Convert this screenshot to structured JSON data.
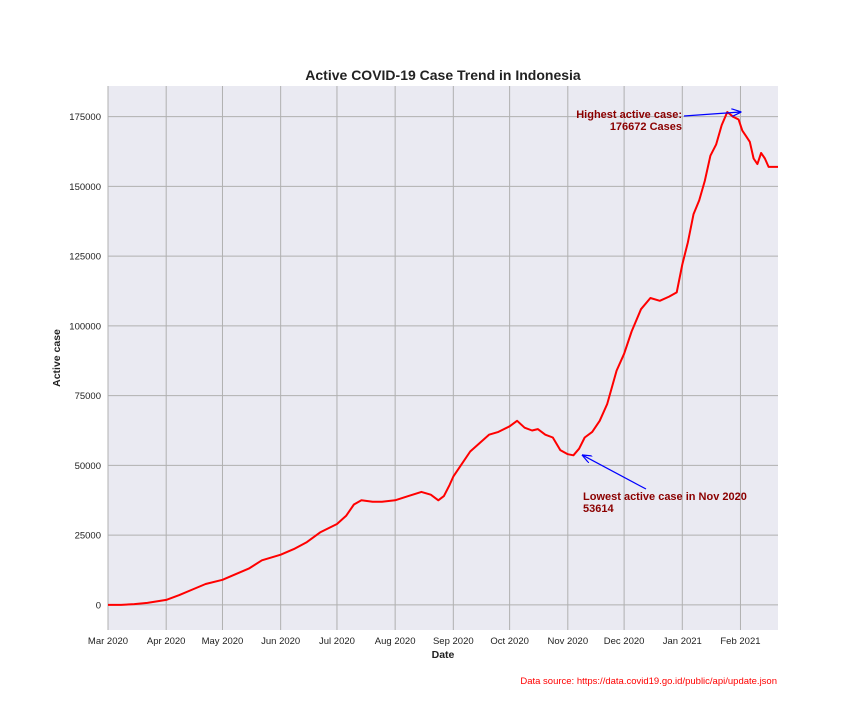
{
  "chart_data": {
    "type": "line",
    "title": "Active COVID-19 Case Trend in Indonesia",
    "xlabel": "Date",
    "ylabel": "Active case",
    "xlim": [
      "2020-03-01",
      "2021-02-21"
    ],
    "ylim": [
      -9000,
      186000
    ],
    "grid": true,
    "x_ticks": [
      "2020-03-01",
      "2020-04-01",
      "2020-05-01",
      "2020-06-01",
      "2020-07-01",
      "2020-08-01",
      "2020-09-01",
      "2020-10-01",
      "2020-11-01",
      "2020-12-01",
      "2021-01-01",
      "2021-02-01"
    ],
    "x_tick_labels": [
      "Mar 2020",
      "Apr 2020",
      "May 2020",
      "Jun 2020",
      "Jul 2020",
      "Aug 2020",
      "Sep 2020",
      "Oct 2020",
      "Nov 2020",
      "Dec 2020",
      "Jan 2021",
      "Feb 2021"
    ],
    "y_ticks": [
      0,
      25000,
      50000,
      75000,
      100000,
      125000,
      150000,
      175000
    ],
    "y_tick_labels": [
      "0",
      "25000",
      "50000",
      "75000",
      "100000",
      "125000",
      "150000",
      "175000"
    ],
    "colors": {
      "line": "#ff0000",
      "plot_bg": "#eaeaf2",
      "grid": "#b0b0b0",
      "arrow": "#0000ff",
      "annotation": "#8b0000",
      "source": "#ff0000"
    },
    "series": [
      {
        "x": [
          "2020-03-01",
          "2020-03-08",
          "2020-03-15",
          "2020-03-22",
          "2020-04-01",
          "2020-04-08",
          "2020-04-15",
          "2020-04-22",
          "2020-05-01",
          "2020-05-08",
          "2020-05-15",
          "2020-05-22",
          "2020-06-01",
          "2020-06-08",
          "2020-06-15",
          "2020-06-22",
          "2020-07-01",
          "2020-07-06",
          "2020-07-10",
          "2020-07-14",
          "2020-07-20",
          "2020-07-25",
          "2020-08-01",
          "2020-08-08",
          "2020-08-15",
          "2020-08-20",
          "2020-08-24",
          "2020-08-27",
          "2020-08-30",
          "2020-09-01",
          "2020-09-05",
          "2020-09-10",
          "2020-09-15",
          "2020-09-20",
          "2020-09-25",
          "2020-10-01",
          "2020-10-05",
          "2020-10-09",
          "2020-10-13",
          "2020-10-16",
          "2020-10-20",
          "2020-10-24",
          "2020-10-28",
          "2020-11-01",
          "2020-11-04",
          "2020-11-07",
          "2020-11-10",
          "2020-11-14",
          "2020-11-18",
          "2020-11-22",
          "2020-11-27",
          "2020-12-01",
          "2020-12-05",
          "2020-12-10",
          "2020-12-15",
          "2020-12-20",
          "2020-12-25",
          "2020-12-29",
          "2021-01-01",
          "2021-01-04",
          "2021-01-07",
          "2021-01-10",
          "2021-01-13",
          "2021-01-16",
          "2021-01-19",
          "2021-01-22",
          "2021-01-25",
          "2021-01-28",
          "2021-01-31",
          "2021-02-02",
          "2021-02-04",
          "2021-02-06",
          "2021-02-08",
          "2021-02-10",
          "2021-02-12",
          "2021-02-14",
          "2021-02-16",
          "2021-02-18",
          "2021-02-21"
        ],
        "y": [
          0,
          0,
          300,
          700,
          1800,
          3500,
          5500,
          7500,
          9000,
          11000,
          13000,
          16000,
          18000,
          20000,
          22500,
          26000,
          29000,
          32000,
          36000,
          37500,
          37000,
          37000,
          37500,
          39000,
          40500,
          39500,
          37500,
          39000,
          43000,
          46000,
          50000,
          55000,
          58000,
          61000,
          62000,
          64000,
          66000,
          63500,
          62500,
          63000,
          61000,
          60000,
          55500,
          54000,
          53614,
          56000,
          60000,
          62000,
          66000,
          72000,
          84000,
          90000,
          98000,
          106000,
          110000,
          109000,
          110500,
          112000,
          122000,
          130000,
          140000,
          145000,
          152000,
          161000,
          165000,
          172000,
          176672,
          175000,
          174000,
          170000,
          168000,
          166000,
          160000,
          158000,
          162000,
          160000,
          157000,
          157000,
          157000
        ]
      }
    ],
    "annotations": [
      {
        "lines": [
          "Highest active case:",
          "176672 Cases"
        ],
        "point": [
          "2021-02-01",
          176672
        ]
      },
      {
        "lines": [
          "Lowest active case in Nov 2020",
          "53614"
        ],
        "point": [
          "2020-11-09",
          53614
        ]
      }
    ],
    "source_text": "Data source: https://data.covid19.go.id/public/api/update.json"
  }
}
